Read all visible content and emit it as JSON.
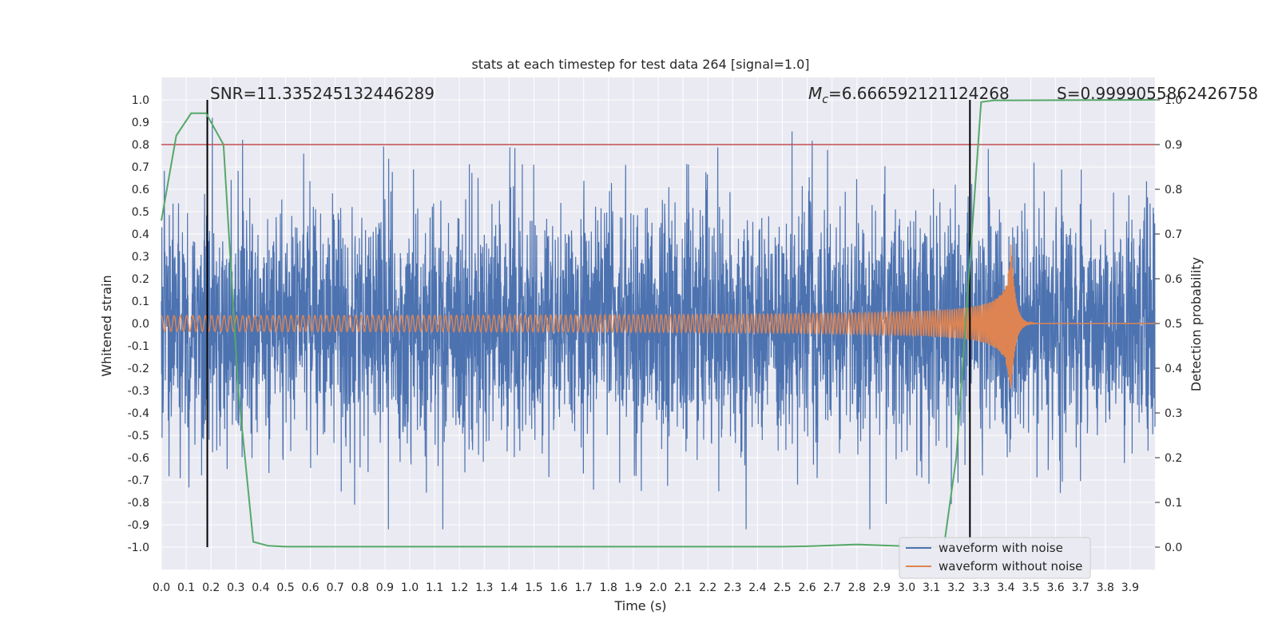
{
  "chart_data": {
    "type": "line",
    "title": "stats at each timestep for test data 264 [signal=1.0]",
    "xlabel": "Time (s)",
    "ylabel": "Whitened strain",
    "ylabel_right": "Detection probability",
    "xlim": [
      0.0,
      4.0
    ],
    "ylim": [
      -1.1,
      1.1
    ],
    "ylim_right": [
      -0.05,
      1.05
    ],
    "x_ticks": [
      "0.0",
      "0.1",
      "0.2",
      "0.3",
      "0.4",
      "0.5",
      "0.6",
      "0.7",
      "0.8",
      "0.9",
      "1.0",
      "1.1",
      "1.2",
      "1.3",
      "1.4",
      "1.5",
      "1.6",
      "1.7",
      "1.8",
      "1.9",
      "2.0",
      "2.1",
      "2.2",
      "2.3",
      "2.4",
      "2.5",
      "2.6",
      "2.7",
      "2.8",
      "2.9",
      "3.0",
      "3.1",
      "3.2",
      "3.3",
      "3.4",
      "3.5",
      "3.6",
      "3.7",
      "3.8",
      "3.9"
    ],
    "y_ticks": [
      "1.0",
      "0.9",
      "0.8",
      "0.7",
      "0.6",
      "0.5",
      "0.4",
      "0.3",
      "0.2",
      "0.1",
      "0.0",
      "-0.1",
      "-0.2",
      "-0.3",
      "-0.4",
      "-0.5",
      "-0.6",
      "-0.7",
      "-0.8",
      "-0.9",
      "-1.0"
    ],
    "y_right_ticks": [
      "1.0",
      "0.9",
      "0.8",
      "0.7",
      "0.6",
      "0.5",
      "0.4",
      "0.3",
      "0.2",
      "0.1",
      "0.0"
    ],
    "threshold": {
      "value": 0.9,
      "axis": "right",
      "color": "#c44e52"
    },
    "markers": [
      {
        "x": 0.185,
        "ymin": -1.0,
        "ymax": 1.0,
        "color": "#000000"
      },
      {
        "x": 3.255,
        "ymin": -1.0,
        "ymax": 1.0,
        "color": "#000000"
      }
    ],
    "annotations": {
      "snr": "SNR=11.335245132446289",
      "mc_symbol": "M",
      "mc_sub": "c",
      "mc_value": "=6.666592121124268",
      "s": "S=0.9999055862426758"
    },
    "series": [
      {
        "name": "waveform with noise",
        "color": "#4c72b0",
        "axis": "left",
        "amplitude": 0.27,
        "peak": 0.92
      },
      {
        "name": "waveform without noise",
        "color": "#dd8452",
        "axis": "left",
        "chirp": {
          "t_merge": 3.42,
          "amp_start": 0.03,
          "amp_peak": 0.37,
          "cycles": 215
        }
      },
      {
        "name": "detection probability",
        "color": "#55a868",
        "axis": "right",
        "x": [
          0.0,
          0.06,
          0.12,
          0.18,
          0.25,
          0.31,
          0.37,
          0.43,
          0.5,
          1.0,
          2.0,
          2.5,
          2.6,
          2.7,
          2.8,
          2.9,
          3.0,
          3.1,
          3.15,
          3.2,
          3.25,
          3.3,
          3.35,
          3.4,
          4.0
        ],
        "y": [
          0.73,
          0.92,
          0.97,
          0.97,
          0.9,
          0.35,
          0.012,
          0.003,
          0.001,
          0.001,
          0.001,
          0.001,
          0.002,
          0.004,
          0.006,
          0.004,
          0.002,
          0.001,
          0.001,
          0.2,
          0.6,
          0.995,
          0.999,
          0.999,
          1.0
        ]
      }
    ],
    "legend": {
      "position": "lower-right",
      "entries": [
        "waveform with noise",
        "waveform without noise"
      ]
    }
  }
}
